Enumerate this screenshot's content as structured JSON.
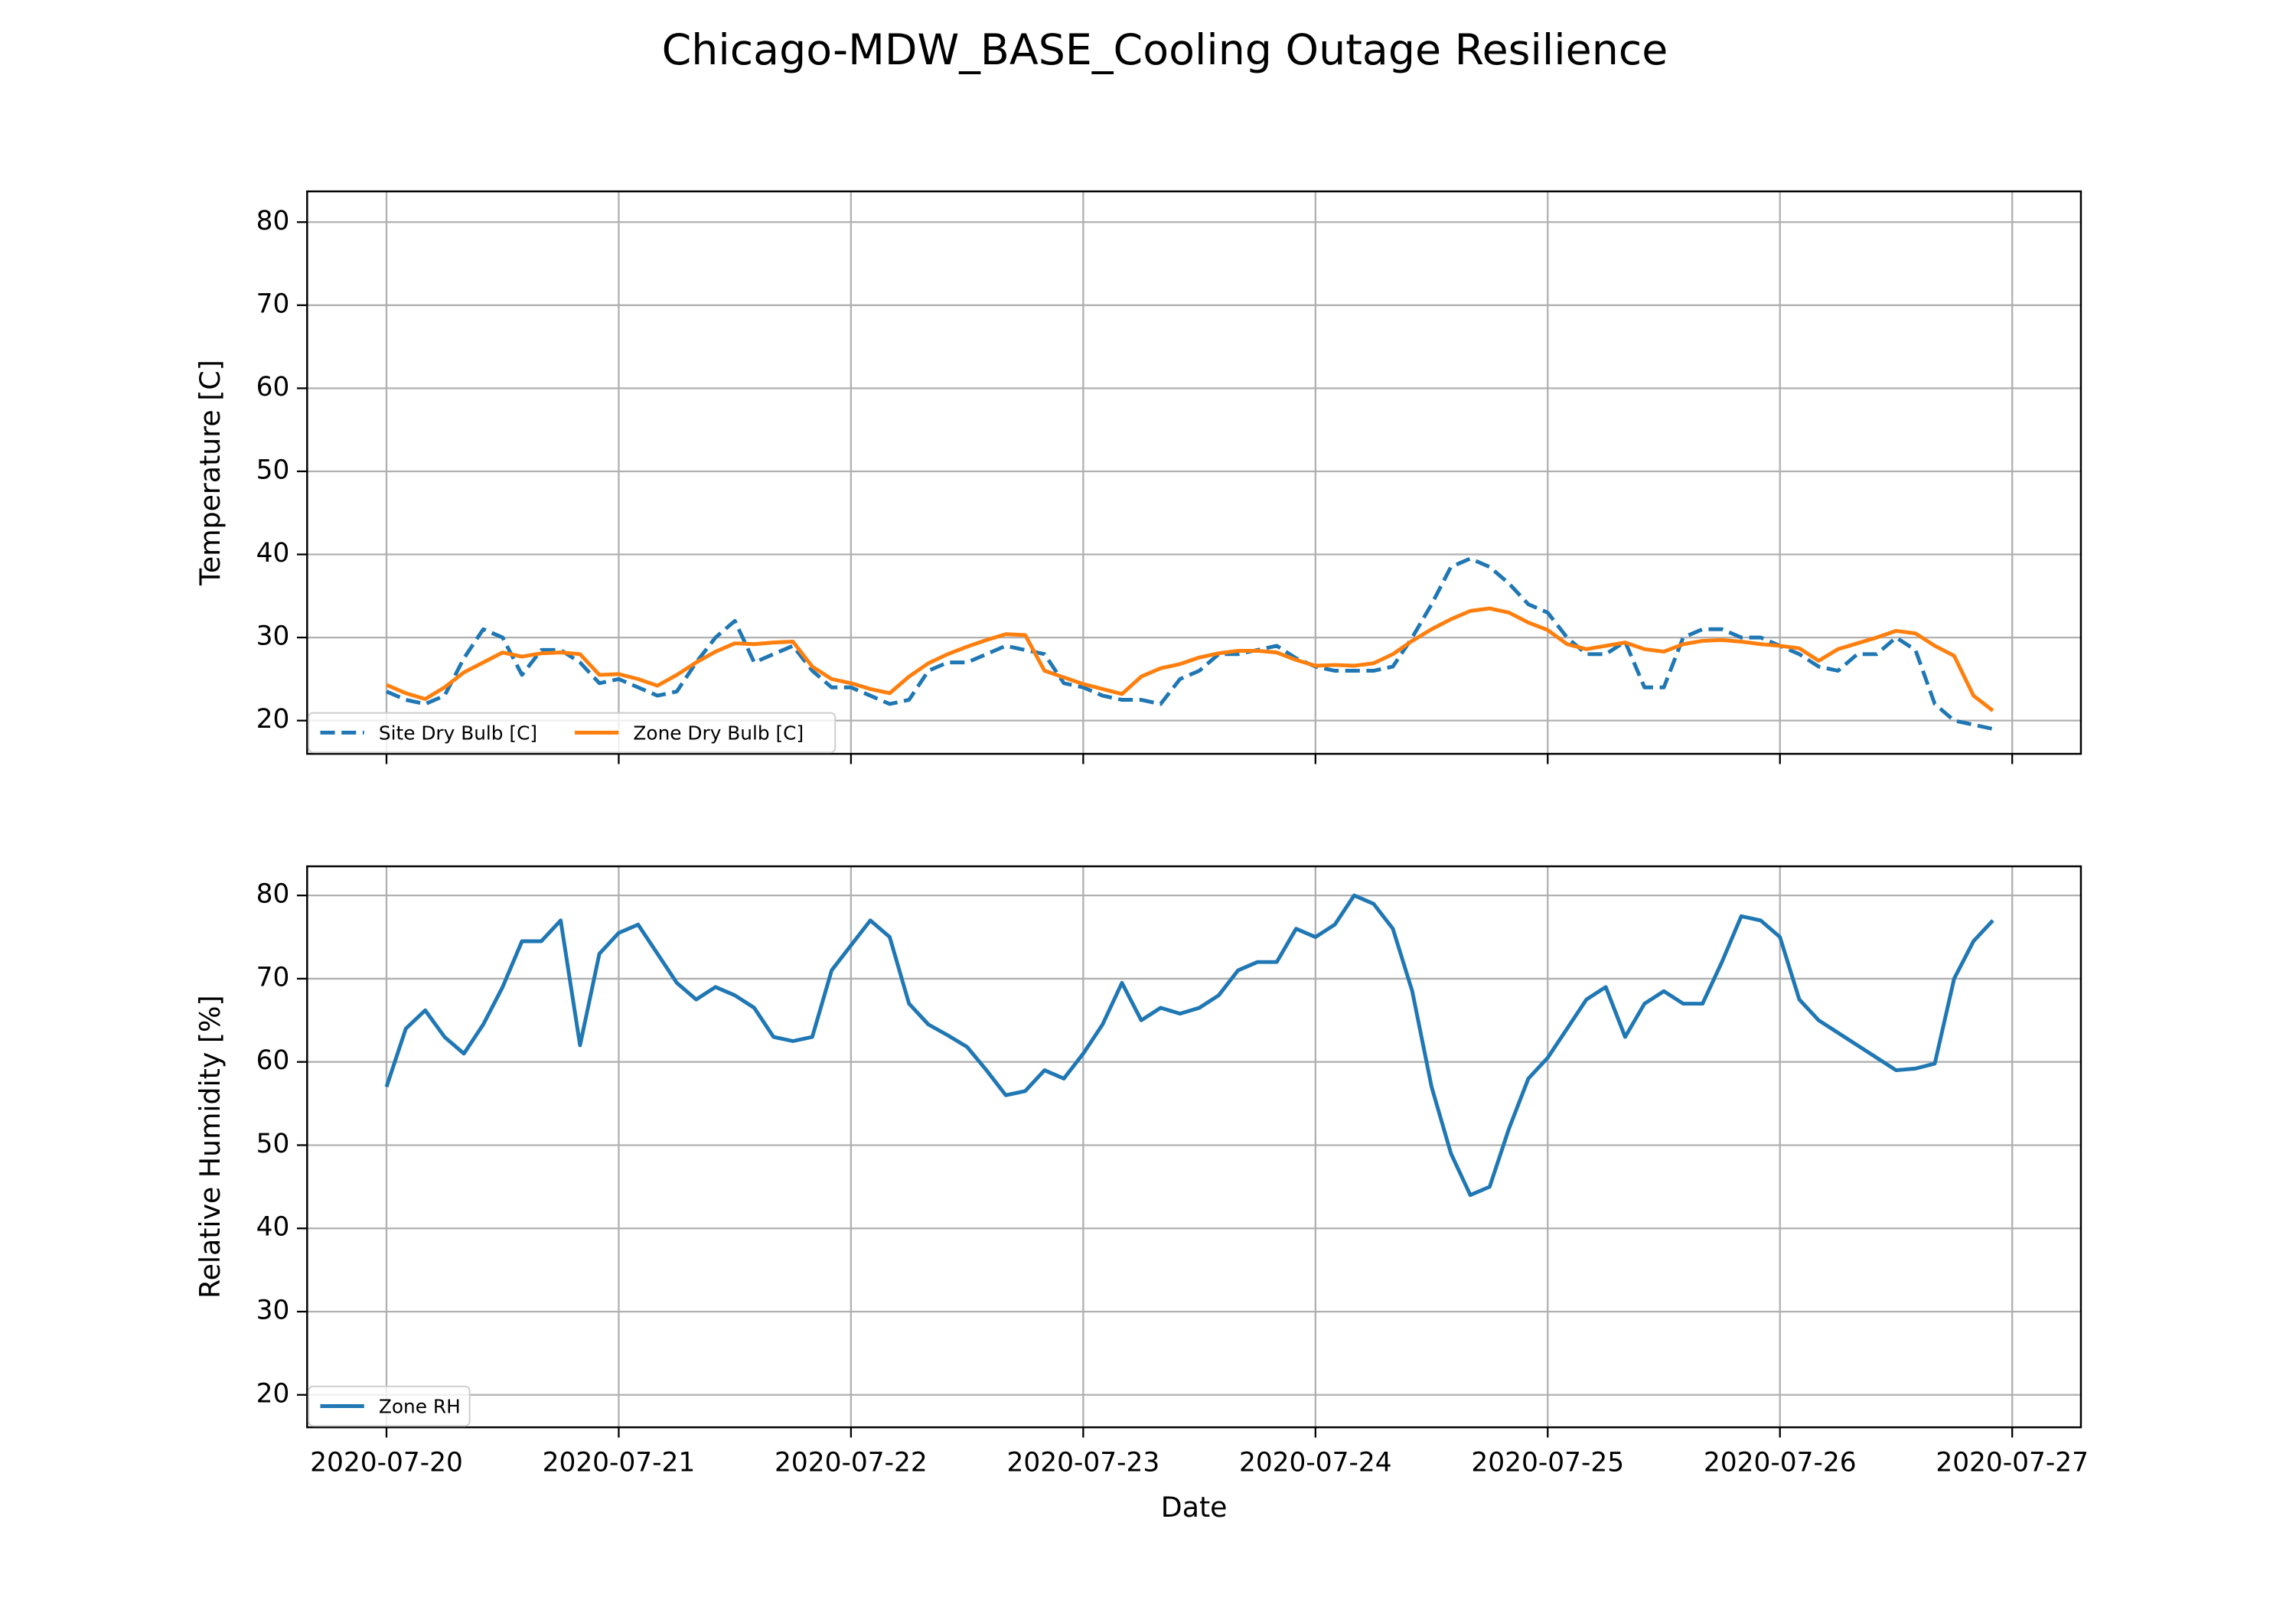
{
  "title": "Chicago-MDW_BASE_Cooling Outage Resilience",
  "chart_data": [
    {
      "type": "line",
      "ylabel": "Temperature [C]",
      "x": [
        0,
        2,
        4,
        6,
        8,
        10,
        12,
        14,
        16,
        18,
        20,
        22,
        24,
        26,
        28,
        30,
        32,
        34,
        36,
        38,
        40,
        42,
        44,
        46,
        48,
        50,
        52,
        54,
        56,
        58,
        60,
        62,
        64,
        66,
        68,
        70,
        72,
        74,
        76,
        78,
        80,
        82,
        84,
        86,
        88,
        90,
        92,
        94,
        96,
        98,
        100,
        102,
        104,
        106,
        108,
        110,
        112,
        114,
        116,
        118,
        120,
        122,
        124,
        126,
        128,
        130,
        132,
        134,
        136,
        138,
        140,
        142,
        144,
        146,
        148,
        150,
        152,
        154,
        156,
        158,
        160,
        162,
        164,
        166
      ],
      "series": [
        {
          "name": "Site Dry Bulb [C]",
          "color": "#1f77b4",
          "linestyle": "dashed",
          "values": [
            23.5,
            22.5,
            22,
            23,
            27.5,
            31,
            30,
            25.5,
            28.5,
            28.5,
            27,
            24.5,
            25,
            24,
            23,
            23.5,
            27,
            30,
            32,
            27,
            28,
            29,
            26,
            24,
            24,
            23,
            22,
            22.5,
            26,
            27,
            27,
            28,
            29,
            28.5,
            28,
            24.5,
            24,
            23,
            22.5,
            22.5,
            22,
            25,
            26,
            28,
            28,
            28.5,
            29,
            27.5,
            26.5,
            26,
            26,
            26,
            26.5,
            30,
            34,
            38.5,
            39.5,
            38.5,
            36.5,
            34,
            33,
            30,
            28,
            28,
            29.5,
            24,
            24,
            30,
            31,
            31,
            30,
            30,
            29,
            28,
            26.5,
            26,
            28,
            28,
            30,
            28.5,
            22,
            20,
            19.5,
            19
          ]
        },
        {
          "name": "Zone Dry Bulb [C]",
          "color": "#ff7f0e",
          "linestyle": "solid",
          "values": [
            24.3,
            23.3,
            22.6,
            24,
            25.8,
            27,
            28.2,
            27.7,
            28.1,
            28.2,
            28,
            25.5,
            25.6,
            25,
            24.2,
            25.5,
            27,
            28.3,
            29.3,
            29.2,
            29.4,
            29.5,
            26.5,
            25,
            24.5,
            23.8,
            23.3,
            25.3,
            26.9,
            28,
            28.9,
            29.7,
            30.4,
            30.3,
            26,
            25.2,
            24.4,
            23.8,
            23.2,
            25.3,
            26.3,
            26.8,
            27.6,
            28.1,
            28.4,
            28.4,
            28.2,
            27.3,
            26.6,
            26.7,
            26.6,
            26.9,
            28,
            29.6,
            31,
            32.2,
            33.2,
            33.5,
            33,
            31.8,
            30.9,
            29.2,
            28.6,
            29,
            29.4,
            28.6,
            28.3,
            29.2,
            29.6,
            29.7,
            29.5,
            29.2,
            29,
            28.7,
            27.2,
            28.6,
            29.3,
            30,
            30.8,
            30.5,
            29,
            27.8,
            23,
            21.2
          ]
        }
      ],
      "xlim": [
        -8.2,
        175.1
      ],
      "ylim": [
        16,
        83.7
      ],
      "yticks": [
        20,
        30,
        40,
        50,
        60,
        70,
        80
      ],
      "grid": true,
      "legend": "lower left"
    },
    {
      "type": "line",
      "ylabel": "Relative Humidity [%]",
      "xlabel": "Date",
      "x": [
        0,
        2,
        4,
        6,
        8,
        10,
        12,
        14,
        16,
        18,
        20,
        22,
        24,
        26,
        28,
        30,
        32,
        34,
        36,
        38,
        40,
        42,
        44,
        46,
        48,
        50,
        52,
        54,
        56,
        58,
        60,
        62,
        64,
        66,
        68,
        70,
        72,
        74,
        76,
        78,
        80,
        82,
        84,
        86,
        88,
        90,
        92,
        94,
        96,
        98,
        100,
        102,
        104,
        106,
        108,
        110,
        112,
        114,
        116,
        118,
        120,
        122,
        124,
        126,
        128,
        130,
        132,
        134,
        136,
        138,
        140,
        142,
        144,
        146,
        148,
        150,
        152,
        154,
        156,
        158,
        160,
        162,
        164,
        166
      ],
      "series": [
        {
          "name": "Zone RH",
          "color": "#1f77b4",
          "linestyle": "solid",
          "values": [
            57,
            64,
            66.2,
            63,
            61,
            64.5,
            69,
            74.5,
            74.5,
            77,
            62,
            73,
            75.5,
            76.5,
            73,
            69.5,
            67.5,
            69,
            68,
            66.5,
            63,
            62.5,
            63,
            71,
            74,
            77,
            75,
            67,
            64.5,
            63.2,
            61.8,
            59,
            56,
            56.5,
            59,
            58,
            61,
            64.5,
            69.5,
            65,
            66.5,
            65.8,
            66.5,
            68,
            71,
            72,
            72,
            76,
            75,
            76.5,
            80,
            79,
            76,
            68.5,
            57,
            49,
            44,
            45,
            52,
            58,
            60.5,
            64,
            67.5,
            69,
            63,
            67,
            68.5,
            67,
            67,
            72,
            77.5,
            77,
            75,
            67.5,
            65,
            63.5,
            62,
            60.5,
            59,
            59.2,
            59.8,
            70,
            74.5,
            77
          ]
        }
      ],
      "xlim": [
        -8.2,
        175.1
      ],
      "ylim": [
        16.1,
        83.5
      ],
      "yticks": [
        20,
        30,
        40,
        50,
        60,
        70,
        80
      ],
      "xticks": [
        {
          "value": 0,
          "label": "2020-07-20"
        },
        {
          "value": 24,
          "label": "2020-07-21"
        },
        {
          "value": 48,
          "label": "2020-07-22"
        },
        {
          "value": 72,
          "label": "2020-07-23"
        },
        {
          "value": 96,
          "label": "2020-07-24"
        },
        {
          "value": 120,
          "label": "2020-07-25"
        },
        {
          "value": 144,
          "label": "2020-07-26"
        },
        {
          "value": 168,
          "label": "2020-07-27"
        }
      ],
      "grid": true,
      "legend": "lower left"
    }
  ]
}
